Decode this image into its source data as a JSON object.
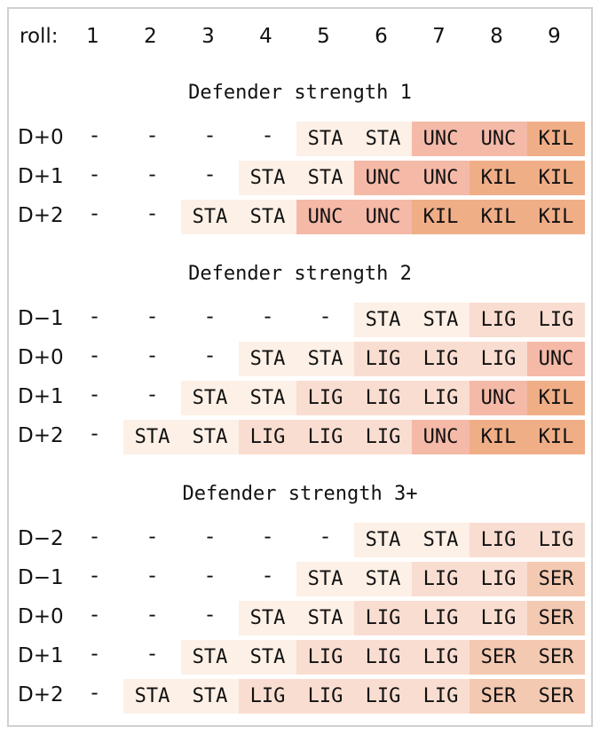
{
  "header": {
    "roll_label": "roll:",
    "rolls": [
      "1",
      "2",
      "3",
      "4",
      "5",
      "6",
      "7",
      "8",
      "9"
    ]
  },
  "colors": {
    "STA": "#fdf0e6",
    "LIG": "#f9ddd1",
    "UNC": "#f5b9a8",
    "SER": "#f4c9b1",
    "KIL": "#f0ae87"
  },
  "sections": [
    {
      "title": "Defender strength 1",
      "rows": [
        {
          "label": "D+0",
          "cells": [
            "-",
            "-",
            "-",
            "-",
            "STA",
            "STA",
            "UNC",
            "UNC",
            "KIL"
          ]
        },
        {
          "label": "D+1",
          "cells": [
            "-",
            "-",
            "-",
            "STA",
            "STA",
            "UNC",
            "UNC",
            "KIL",
            "KIL"
          ]
        },
        {
          "label": "D+2",
          "cells": [
            "-",
            "-",
            "STA",
            "STA",
            "UNC",
            "UNC",
            "KIL",
            "KIL",
            "KIL"
          ]
        }
      ]
    },
    {
      "title": "Defender strength 2",
      "rows": [
        {
          "label": "D−1",
          "cells": [
            "-",
            "-",
            "-",
            "-",
            "-",
            "STA",
            "STA",
            "LIG",
            "LIG"
          ]
        },
        {
          "label": "D+0",
          "cells": [
            "-",
            "-",
            "-",
            "STA",
            "STA",
            "LIG",
            "LIG",
            "LIG",
            "UNC"
          ]
        },
        {
          "label": "D+1",
          "cells": [
            "-",
            "-",
            "STA",
            "STA",
            "LIG",
            "LIG",
            "LIG",
            "UNC",
            "KIL"
          ]
        },
        {
          "label": "D+2",
          "cells": [
            "-",
            "STA",
            "STA",
            "LIG",
            "LIG",
            "LIG",
            "UNC",
            "KIL",
            "KIL"
          ]
        }
      ]
    },
    {
      "title": "Defender strength 3+",
      "rows": [
        {
          "label": "D−2",
          "cells": [
            "-",
            "-",
            "-",
            "-",
            "-",
            "STA",
            "STA",
            "LIG",
            "LIG"
          ]
        },
        {
          "label": "D−1",
          "cells": [
            "-",
            "-",
            "-",
            "-",
            "STA",
            "STA",
            "LIG",
            "LIG",
            "SER"
          ]
        },
        {
          "label": "D+0",
          "cells": [
            "-",
            "-",
            "-",
            "STA",
            "STA",
            "LIG",
            "LIG",
            "LIG",
            "SER"
          ]
        },
        {
          "label": "D+1",
          "cells": [
            "-",
            "-",
            "STA",
            "STA",
            "LIG",
            "LIG",
            "LIG",
            "SER",
            "SER"
          ]
        },
        {
          "label": "D+2",
          "cells": [
            "-",
            "STA",
            "STA",
            "LIG",
            "LIG",
            "LIG",
            "LIG",
            "SER",
            "SER"
          ]
        }
      ]
    }
  ]
}
